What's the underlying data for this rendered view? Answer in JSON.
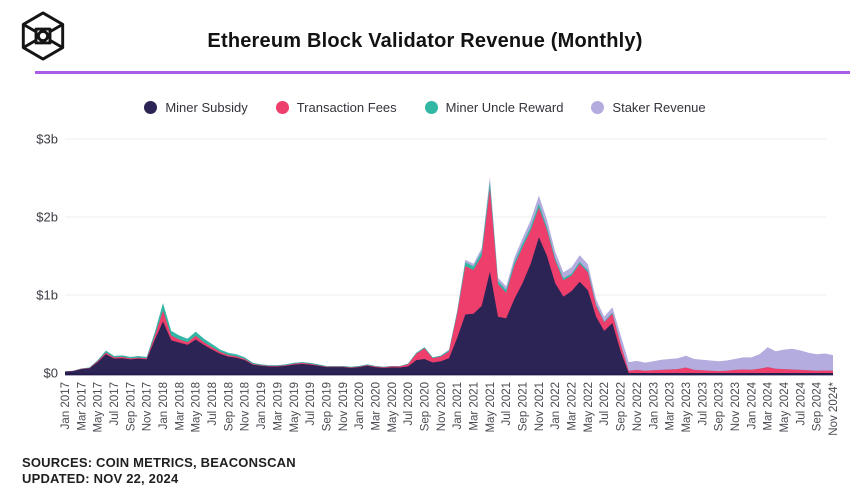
{
  "header": {
    "title": "Ethereum Block Validator Revenue (Monthly)"
  },
  "footer": {
    "sources": "SOURCES: COIN METRICS, BEACONSCAN",
    "updated": "UPDATED: NOV 22, 2024"
  },
  "colors": {
    "divider": "#ac5ce6",
    "axis_line": "#241d4e",
    "gridline": "#ececef",
    "axis_text": "#4a4a52",
    "ytick_text": "#3d3d46"
  },
  "chart_data": {
    "type": "area",
    "stacked": true,
    "title": "Ethereum Block Validator Revenue (Monthly)",
    "unit": "USD billions per month",
    "ylim": [
      0,
      3
    ],
    "grid": "horizontal",
    "legend_position": "top-center",
    "y_ticks": [
      {
        "label": "$3b",
        "value": 3
      },
      {
        "label": "$2b",
        "value": 2
      },
      {
        "label": "$1b",
        "value": 1
      },
      {
        "label": "$0",
        "value": 0
      }
    ],
    "x_months_count": 95,
    "x_tick_every": 2,
    "x_tick_labels": [
      "Jan 2017",
      "Mar 2017",
      "May 2017",
      "Jul 2017",
      "Sep 2017",
      "Nov 2017",
      "Jan 2018",
      "Mar 2018",
      "May 2018",
      "Jul 2018",
      "Sep 2018",
      "Nov 2018",
      "Jan 2019",
      "Mar 2019",
      "May 2019",
      "Jul 2019",
      "Sep 2019",
      "Nov 2019",
      "Jan 2020",
      "Mar 2020",
      "May 2020",
      "Jul 2020",
      "Sep 2020",
      "Nov 2020",
      "Jan 2021",
      "Mar 2021",
      "May 2021",
      "Jul 2021",
      "Sep 2021",
      "Nov 2021",
      "Jan 2022",
      "Mar 2022",
      "May 2022",
      "Jul 2022",
      "Sep 2022",
      "Nov 2022",
      "Jan 2023",
      "Mar 2023",
      "May 2023",
      "Jul 2023",
      "Sep 2023",
      "Nov 2023",
      "Jan 2024",
      "Mar 2024",
      "May 2024",
      "Jul 2024",
      "Sep 2024",
      "Nov 2024*"
    ],
    "series": [
      {
        "name": "Miner Subsidy",
        "color": "#2d2456",
        "values": [
          0.018,
          0.025,
          0.05,
          0.06,
          0.14,
          0.24,
          0.185,
          0.19,
          0.175,
          0.185,
          0.175,
          0.43,
          0.66,
          0.42,
          0.39,
          0.36,
          0.43,
          0.36,
          0.3,
          0.245,
          0.21,
          0.195,
          0.165,
          0.105,
          0.092,
          0.083,
          0.083,
          0.091,
          0.108,
          0.116,
          0.108,
          0.092,
          0.075,
          0.075,
          0.075,
          0.066,
          0.075,
          0.092,
          0.074,
          0.066,
          0.072,
          0.07,
          0.085,
          0.165,
          0.18,
          0.135,
          0.15,
          0.19,
          0.45,
          0.75,
          0.76,
          0.86,
          1.3,
          0.72,
          0.7,
          0.95,
          1.15,
          1.4,
          1.74,
          1.5,
          1.15,
          0.98,
          1.05,
          1.17,
          1.06,
          0.72,
          0.54,
          0.64,
          0.28,
          0,
          0,
          0,
          0,
          0,
          0,
          0,
          0,
          0,
          0,
          0,
          0,
          0,
          0,
          0,
          0,
          0,
          0,
          0,
          0,
          0,
          0,
          0,
          0,
          0,
          0
        ]
      },
      {
        "name": "Transaction Fees",
        "color": "#ee3e6c",
        "values": [
          0.001,
          0.002,
          0.004,
          0.005,
          0.012,
          0.022,
          0.015,
          0.016,
          0.012,
          0.012,
          0.012,
          0.05,
          0.14,
          0.06,
          0.04,
          0.035,
          0.045,
          0.035,
          0.03,
          0.025,
          0.02,
          0.018,
          0.015,
          0.012,
          0.008,
          0.008,
          0.008,
          0.009,
          0.01,
          0.012,
          0.01,
          0.008,
          0.007,
          0.007,
          0.007,
          0.006,
          0.007,
          0.009,
          0.009,
          0.007,
          0.012,
          0.015,
          0.028,
          0.082,
          0.135,
          0.055,
          0.06,
          0.085,
          0.31,
          0.62,
          0.56,
          0.64,
          1.07,
          0.42,
          0.33,
          0.43,
          0.46,
          0.43,
          0.38,
          0.33,
          0.29,
          0.21,
          0.2,
          0.23,
          0.23,
          0.14,
          0.11,
          0.12,
          0.09,
          0.03,
          0.04,
          0.028,
          0.035,
          0.04,
          0.045,
          0.05,
          0.07,
          0.04,
          0.035,
          0.03,
          0.025,
          0.028,
          0.04,
          0.045,
          0.042,
          0.055,
          0.075,
          0.055,
          0.05,
          0.045,
          0.04,
          0.035,
          0.03,
          0.032,
          0.03
        ]
      },
      {
        "name": "Miner Uncle Reward",
        "color": "#32b7a5",
        "values": [
          0.001,
          0.002,
          0.004,
          0.005,
          0.013,
          0.025,
          0.018,
          0.02,
          0.018,
          0.02,
          0.018,
          0.045,
          0.095,
          0.06,
          0.05,
          0.045,
          0.055,
          0.045,
          0.04,
          0.03,
          0.028,
          0.025,
          0.02,
          0.013,
          0.01,
          0.009,
          0.009,
          0.01,
          0.012,
          0.012,
          0.012,
          0.01,
          0.008,
          0.008,
          0.008,
          0.008,
          0.008,
          0.009,
          0.007,
          0.007,
          0.006,
          0.005,
          0.007,
          0.013,
          0.015,
          0.01,
          0.012,
          0.015,
          0.025,
          0.05,
          0.045,
          0.055,
          0.08,
          0.04,
          0.035,
          0.04,
          0.045,
          0.045,
          0.05,
          0.04,
          0.03,
          0.025,
          0.025,
          0.025,
          0.025,
          0.018,
          0.012,
          0.014,
          0.006,
          0,
          0,
          0,
          0,
          0,
          0,
          0,
          0,
          0,
          0,
          0,
          0,
          0,
          0,
          0,
          0,
          0,
          0,
          0,
          0,
          0,
          0,
          0,
          0,
          0,
          0
        ]
      },
      {
        "name": "Staker Revenue",
        "color": "#b4abde",
        "values": [
          0,
          0,
          0,
          0,
          0,
          0,
          0,
          0,
          0,
          0,
          0,
          0,
          0,
          0,
          0,
          0,
          0,
          0,
          0,
          0,
          0,
          0,
          0,
          0,
          0,
          0,
          0,
          0,
          0,
          0,
          0,
          0,
          0,
          0,
          0,
          0,
          0,
          0,
          0,
          0,
          0,
          0,
          0,
          0,
          0,
          0,
          0.003,
          0.01,
          0.015,
          0.03,
          0.035,
          0.045,
          0.06,
          0.04,
          0.045,
          0.06,
          0.07,
          0.085,
          0.105,
          0.095,
          0.085,
          0.075,
          0.08,
          0.085,
          0.08,
          0.065,
          0.06,
          0.07,
          0.11,
          0.11,
          0.115,
          0.105,
          0.115,
          0.13,
          0.135,
          0.14,
          0.15,
          0.14,
          0.135,
          0.13,
          0.125,
          0.132,
          0.14,
          0.155,
          0.158,
          0.185,
          0.255,
          0.225,
          0.25,
          0.265,
          0.25,
          0.225,
          0.21,
          0.218,
          0.2
        ]
      }
    ]
  }
}
